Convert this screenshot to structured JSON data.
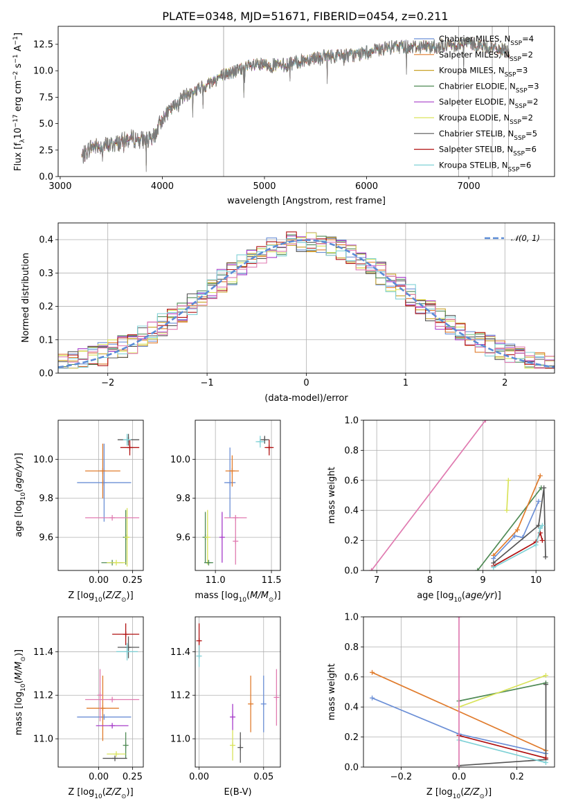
{
  "figure": {
    "title": "PLATE=0348, MJD=51671, FIBERID=0454, z=0.211"
  },
  "colors": {
    "chabrier_miles": "#6b8fd6",
    "salpeter_miles": "#e07b2c",
    "kroupa_miles": "#c9a227",
    "chabrier_elodie": "#4f8a55",
    "salpeter_elodie": "#a63bc9",
    "kroupa_elodie": "#d9e35a",
    "chabrier_stelib": "#555555",
    "salpeter_stelib": "#b01010",
    "kroupa_stelib": "#7fd1d6",
    "pink": "#e07ab0",
    "normal": "#5b8bd6",
    "grid": "#b0b0b0"
  },
  "chart_data": [
    {
      "id": "spectrum",
      "type": "line",
      "title": "PLATE=0348, MJD=51671, FIBERID=0454, z=0.211",
      "xlabel": "wavelength [Angstrom, rest frame]",
      "ylabel_main": "Flux [f",
      "ylabel_sub": "λ",
      "ylabel_tail": "10",
      "ylabel_sup1": "−17",
      "ylabel_mid": " erg cm",
      "ylabel_sup2": "−2",
      "ylabel_mid2": " s",
      "ylabel_sup3": "−1",
      "ylabel_end": " A",
      "ylabel_sup4": "−1",
      "ylabel_close": "]",
      "xlim": [
        2980,
        7840
      ],
      "ylim": [
        0,
        14.2
      ],
      "xticks": [
        3000,
        4000,
        5000,
        6000,
        7000
      ],
      "yticks": [
        0.0,
        2.5,
        5.0,
        7.5,
        10.0,
        12.5
      ],
      "ytick_labels": [
        "0.0",
        "2.5",
        "5.0",
        "7.5",
        "10.0",
        "12.5"
      ],
      "legend_position": "right",
      "legend": [
        {
          "name": "Chabrier MILES, N",
          "sub": "SSP",
          "tail": "=4",
          "color_key": "chabrier_miles"
        },
        {
          "name": "Salpeter MILES, N",
          "sub": "SSP",
          "tail": "=2",
          "color_key": "salpeter_miles"
        },
        {
          "name": "Kroupa MILES, N",
          "sub": "SSP",
          "tail": "=3",
          "color_key": "kroupa_miles"
        },
        {
          "name": "Chabrier ELODIE, N",
          "sub": "SSP",
          "tail": "=3",
          "color_key": "chabrier_elodie"
        },
        {
          "name": "Salpeter ELODIE, N",
          "sub": "SSP",
          "tail": "=2",
          "color_key": "salpeter_elodie"
        },
        {
          "name": "Kroupa ELODIE, N",
          "sub": "SSP",
          "tail": "=2",
          "color_key": "kroupa_elodie"
        },
        {
          "name": "Chabrier STELIB, N",
          "sub": "SSP",
          "tail": "=5",
          "color_key": "chabrier_stelib"
        },
        {
          "name": "Salpeter STELIB, N",
          "sub": "SSP",
          "tail": "=6",
          "color_key": "salpeter_stelib"
        },
        {
          "name": "Kroupa STELIB, N",
          "sub": "SSP",
          "tail": "=6",
          "color_key": "kroupa_stelib"
        }
      ],
      "anchor_points": [
        [
          3210,
          1.8
        ],
        [
          3300,
          2.8
        ],
        [
          3500,
          3.0
        ],
        [
          3700,
          3.6
        ],
        [
          3900,
          3.4
        ],
        [
          4000,
          5.5
        ],
        [
          4200,
          7.5
        ],
        [
          4400,
          8.5
        ],
        [
          4600,
          9.6
        ],
        [
          4900,
          10.5
        ],
        [
          5200,
          10.5
        ],
        [
          5500,
          11.3
        ],
        [
          5900,
          11.5
        ],
        [
          6300,
          12.3
        ],
        [
          6700,
          12.3
        ],
        [
          7000,
          12.6
        ],
        [
          7400,
          11.8
        ]
      ]
    },
    {
      "id": "residuals",
      "type": "histogram",
      "xlabel": "(data-model)/error",
      "ylabel": "Normed distribution",
      "xlim": [
        -2.5,
        2.5
      ],
      "ylim": [
        0,
        0.45
      ],
      "xticks": [
        -2,
        -1,
        0,
        1,
        2
      ],
      "xtick_labels": [
        "−2",
        "−1",
        "0",
        "1",
        "2"
      ],
      "yticks": [
        0.0,
        0.1,
        0.2,
        0.3,
        0.4
      ],
      "ytick_labels": [
        "0.0",
        "0.1",
        "0.2",
        "0.3",
        "0.4"
      ],
      "bin_width": 0.1,
      "legend": {
        "label": "𝒩(0, 1)",
        "position": "upper right"
      },
      "normal_curve": {
        "mean": 0,
        "sigma": 1
      }
    },
    {
      "id": "age_vs_Z",
      "type": "scatter",
      "xlabel": "Z [log",
      "xlabel_sub": "10",
      "xlabel_tail": "(Z/Z",
      "xlabel_sub2": "⊙",
      "xlabel_end": ")]",
      "ylabel": "age  [log",
      "ylabel_sub": "10",
      "ylabel_tail": "(age/yr)]",
      "xlim": [
        -0.3,
        0.33
      ],
      "ylim": [
        9.43,
        10.2
      ],
      "xticks": [
        0.0,
        0.25
      ],
      "xtick_labels": [
        "0.00",
        "0.25"
      ],
      "yticks": [
        9.6,
        9.8,
        10.0
      ],
      "ytick_labels": [
        "9.6",
        "9.8",
        "10.0"
      ],
      "points": [
        {
          "x": 0.04,
          "y": 9.88,
          "xerr": 0.2,
          "yerr": 0.2,
          "color_key": "chabrier_miles"
        },
        {
          "x": 0.03,
          "y": 9.94,
          "xerr": 0.13,
          "yerr": 0.14,
          "color_key": "salpeter_miles"
        },
        {
          "x": 0.22,
          "y": 10.1,
          "xerr": 0.08,
          "yerr": 0.03,
          "color_key": "chabrier_stelib"
        },
        {
          "x": 0.23,
          "y": 10.06,
          "xerr": 0.07,
          "yerr": 0.04,
          "color_key": "salpeter_stelib"
        },
        {
          "x": 0.21,
          "y": 10.1,
          "xerr": 0.03,
          "yerr": 0.03,
          "color_key": "kroupa_stelib"
        },
        {
          "x": 0.2,
          "y": 9.6,
          "xerr": 0.01,
          "yerr": 0.14,
          "color_key": "chabrier_elodie"
        },
        {
          "x": 0.21,
          "y": 9.6,
          "xerr": 0.01,
          "yerr": 0.15,
          "color_key": "kroupa_elodie"
        },
        {
          "x": 0.1,
          "y": 9.47,
          "xerr": 0.08,
          "yerr": 0.0,
          "color_key": "chabrier_elodie"
        },
        {
          "x": 0.13,
          "y": 9.47,
          "xerr": 0.07,
          "yerr": 0.0,
          "color_key": "kroupa_elodie"
        },
        {
          "x": 0.1,
          "y": 9.7,
          "xerr": 0.2,
          "yerr": 0.0,
          "color_key": "pink"
        }
      ]
    },
    {
      "id": "age_vs_mass",
      "type": "scatter",
      "xlabel": "mass [log",
      "xlabel_sub": "10",
      "xlabel_tail": "(M/M",
      "xlabel_sub2": "⊙",
      "xlabel_end": ")]",
      "xlim": [
        10.82,
        11.58
      ],
      "ylim": [
        9.43,
        10.2
      ],
      "xticks": [
        11.0,
        11.5
      ],
      "xtick_labels": [
        "11.0",
        "11.5"
      ],
      "yticks": [
        9.6,
        9.8,
        10.0
      ],
      "ytick_labels": [
        "9.6",
        "9.8",
        "10.0"
      ],
      "points": [
        {
          "x": 11.13,
          "y": 9.88,
          "xerr": 0.05,
          "yerr": 0.18,
          "color_key": "chabrier_miles"
        },
        {
          "x": 11.15,
          "y": 9.94,
          "xerr": 0.06,
          "yerr": 0.08,
          "color_key": "salpeter_miles"
        },
        {
          "x": 11.44,
          "y": 10.1,
          "xerr": 0.04,
          "yerr": 0.02,
          "color_key": "chabrier_stelib"
        },
        {
          "x": 11.48,
          "y": 10.06,
          "xerr": 0.04,
          "yerr": 0.04,
          "color_key": "salpeter_stelib"
        },
        {
          "x": 11.4,
          "y": 10.09,
          "xerr": 0.04,
          "yerr": 0.03,
          "color_key": "kroupa_stelib"
        },
        {
          "x": 10.91,
          "y": 9.6,
          "xerr": 0.0,
          "yerr": 0.13,
          "color_key": "chabrier_elodie"
        },
        {
          "x": 10.93,
          "y": 9.6,
          "xerr": 0.0,
          "yerr": 0.14,
          "color_key": "kroupa_elodie"
        },
        {
          "x": 10.94,
          "y": 9.47,
          "xerr": 0.04,
          "yerr": 0.0,
          "color_key": "chabrier_elodie"
        },
        {
          "x": 11.06,
          "y": 9.6,
          "xerr": 0.0,
          "yerr": 0.13,
          "color_key": "salpeter_elodie"
        },
        {
          "x": 11.18,
          "y": 9.58,
          "xerr": 0.0,
          "yerr": 0.12,
          "color_key": "pink"
        },
        {
          "x": 11.18,
          "y": 9.7,
          "xerr": 0.1,
          "yerr": 0.0,
          "color_key": "pink"
        }
      ]
    },
    {
      "id": "massweight_vs_age",
      "type": "line",
      "xlabel": "age  [log",
      "xlabel_sub": "10",
      "xlabel_tail": "(age/yr)]",
      "ylabel": "mass weight",
      "xlim": [
        6.75,
        10.35
      ],
      "ylim": [
        0,
        1
      ],
      "xticks": [
        7,
        8,
        9,
        10
      ],
      "xtick_labels": [
        "7",
        "8",
        "9",
        "10"
      ],
      "yticks": [
        0.0,
        0.2,
        0.4,
        0.6,
        0.8,
        1.0
      ],
      "ytick_labels": [
        "0.0",
        "0.2",
        "0.4",
        "0.6",
        "0.8",
        "1.0"
      ],
      "series": [
        {
          "color_key": "pink",
          "x": [
            6.9,
            9.05
          ],
          "y": [
            0.0,
            1.0
          ]
        },
        {
          "color_key": "chabrier_elodie",
          "x": [
            8.9,
            10.1
          ],
          "y": [
            0.0,
            0.55
          ]
        },
        {
          "color_key": "salpeter_miles",
          "x": [
            9.2,
            9.65,
            10.08
          ],
          "y": [
            0.1,
            0.27,
            0.63
          ]
        },
        {
          "color_key": "chabrier_miles",
          "x": [
            9.2,
            9.6,
            9.75,
            10.05
          ],
          "y": [
            0.08,
            0.23,
            0.22,
            0.46
          ]
        },
        {
          "color_key": "chabrier_stelib",
          "x": [
            9.2,
            10.05,
            10.15,
            10.18
          ],
          "y": [
            0.05,
            0.3,
            0.55,
            0.09
          ]
        },
        {
          "color_key": "salpeter_stelib",
          "x": [
            9.2,
            10.0,
            10.08,
            10.12
          ],
          "y": [
            0.03,
            0.19,
            0.25,
            0.2
          ]
        },
        {
          "color_key": "kroupa_stelib",
          "x": [
            9.2,
            10.0,
            10.08,
            10.12
          ],
          "y": [
            0.02,
            0.17,
            0.28,
            0.3
          ]
        },
        {
          "color_key": "kroupa_elodie",
          "x": [
            9.45,
            9.48
          ],
          "y": [
            0.4,
            0.6
          ]
        }
      ]
    },
    {
      "id": "mass_vs_Z",
      "type": "scatter",
      "xlabel": "Z [log",
      "xlabel_sub": "10",
      "xlabel_tail": "(Z/Z",
      "xlabel_sub2": "⊙",
      "xlabel_end": ")]",
      "ylabel": "mass [log",
      "ylabel_sub": "10",
      "ylabel_tail": "(M/M",
      "ylabel_sub2": "⊙",
      "ylabel_end": ")]",
      "xlim": [
        -0.3,
        0.33
      ],
      "ylim": [
        10.87,
        11.56
      ],
      "xticks": [
        0.0,
        0.25
      ],
      "xtick_labels": [
        "0.00",
        "0.25"
      ],
      "yticks": [
        11.0,
        11.2,
        11.4
      ],
      "ytick_labels": [
        "11.0",
        "11.2",
        "11.4"
      ],
      "points": [
        {
          "x": 0.04,
          "y": 11.1,
          "xerr": 0.2,
          "yerr": 0.0,
          "color_key": "chabrier_miles"
        },
        {
          "x": 0.03,
          "y": 11.14,
          "xerr": 0.12,
          "yerr": 0.15,
          "color_key": "salpeter_miles"
        },
        {
          "x": 0.22,
          "y": 11.42,
          "xerr": 0.08,
          "yerr": 0.05,
          "color_key": "chabrier_stelib"
        },
        {
          "x": 0.2,
          "y": 11.48,
          "xerr": 0.1,
          "yerr": 0.05,
          "color_key": "salpeter_stelib"
        },
        {
          "x": 0.21,
          "y": 11.4,
          "xerr": 0.08,
          "yerr": 0.04,
          "color_key": "kroupa_stelib"
        },
        {
          "x": 0.2,
          "y": 10.97,
          "xerr": 0.0,
          "yerr": 0.06,
          "color_key": "chabrier_elodie"
        },
        {
          "x": 0.1,
          "y": 11.06,
          "xerr": 0.12,
          "yerr": 0.0,
          "color_key": "salpeter_elodie"
        },
        {
          "x": 0.13,
          "y": 10.93,
          "xerr": 0.07,
          "yerr": 0.0,
          "color_key": "kroupa_elodie"
        },
        {
          "x": 0.12,
          "y": 10.91,
          "xerr": 0.09,
          "yerr": 0.0,
          "color_key": "chabrier_stelib"
        },
        {
          "x": 0.1,
          "y": 11.18,
          "xerr": 0.2,
          "yerr": 0.0,
          "color_key": "pink"
        },
        {
          "x": 0.01,
          "y": 11.2,
          "xerr": 0.0,
          "yerr": 0.12,
          "color_key": "pink"
        }
      ]
    },
    {
      "id": "mass_vs_ebv",
      "type": "scatter",
      "xlabel": "E(B-V)",
      "xlim": [
        -0.003,
        0.063
      ],
      "ylim": [
        10.87,
        11.56
      ],
      "xticks": [
        0.0,
        0.05
      ],
      "xtick_labels": [
        "0.00",
        "0.05"
      ],
      "yticks": [
        11.0,
        11.2,
        11.4
      ],
      "ytick_labels": [
        "11.0",
        "11.2",
        "11.4"
      ],
      "points": [
        {
          "x": 0.0,
          "y": 11.45,
          "xerr": 0.0,
          "yerr": 0.08,
          "color_key": "salpeter_stelib"
        },
        {
          "x": 0.0,
          "y": 11.38,
          "xerr": 0.0,
          "yerr": 0.05,
          "color_key": "kroupa_stelib"
        },
        {
          "x": 0.026,
          "y": 11.1,
          "xerr": 0.0,
          "yerr": 0.06,
          "color_key": "salpeter_elodie"
        },
        {
          "x": 0.026,
          "y": 10.97,
          "xerr": 0.0,
          "yerr": 0.07,
          "color_key": "kroupa_elodie"
        },
        {
          "x": 0.032,
          "y": 10.96,
          "xerr": 0.0,
          "yerr": 0.07,
          "color_key": "chabrier_stelib"
        },
        {
          "x": 0.04,
          "y": 11.16,
          "xerr": 0.0,
          "yerr": 0.13,
          "color_key": "salpeter_miles"
        },
        {
          "x": 0.05,
          "y": 11.16,
          "xerr": 0.0,
          "yerr": 0.13,
          "color_key": "chabrier_miles"
        },
        {
          "x": 0.06,
          "y": 11.19,
          "xerr": 0.0,
          "yerr": 0.13,
          "color_key": "pink"
        }
      ]
    },
    {
      "id": "massweight_vs_Z",
      "type": "line",
      "xlabel": "Z [log",
      "xlabel_sub": "10",
      "xlabel_tail": "(Z/Z",
      "xlabel_sub2": "⊙",
      "xlabel_end": ")]",
      "ylabel": "mass weight",
      "xlim": [
        -0.33,
        0.33
      ],
      "ylim": [
        0,
        1
      ],
      "xticks": [
        -0.2,
        0.0,
        0.2
      ],
      "xtick_labels": [
        "−0.2",
        "0.0",
        "0.2"
      ],
      "yticks": [
        0.0,
        0.2,
        0.4,
        0.6,
        0.8,
        1.0
      ],
      "ytick_labels": [
        "0.0",
        "0.2",
        "0.4",
        "0.6",
        "0.8",
        "1.0"
      ],
      "series": [
        {
          "color_key": "salpeter_miles",
          "x": [
            -0.3,
            0.3
          ],
          "y": [
            0.63,
            0.11
          ]
        },
        {
          "color_key": "chabrier_miles",
          "x": [
            -0.3,
            0.0,
            0.3
          ],
          "y": [
            0.46,
            0.22,
            0.09
          ]
        },
        {
          "color_key": "chabrier_elodie",
          "x": [
            0.0,
            0.3
          ],
          "y": [
            0.44,
            0.56
          ]
        },
        {
          "color_key": "kroupa_elodie",
          "x": [
            0.0,
            0.3
          ],
          "y": [
            0.4,
            0.61
          ]
        },
        {
          "color_key": "chabrier_stelib",
          "x": [
            0.0,
            0.3,
            0.3
          ],
          "y": [
            0.01,
            0.05,
            0.55
          ]
        },
        {
          "color_key": "salpeter_stelib",
          "x": [
            0.0,
            0.3
          ],
          "y": [
            0.21,
            0.06
          ]
        },
        {
          "color_key": "kroupa_stelib",
          "x": [
            0.0,
            0.3
          ],
          "y": [
            0.18,
            0.03
          ]
        },
        {
          "color_key": "pink",
          "x": [
            0.0,
            0.0
          ],
          "y": [
            0.0,
            1.0
          ]
        }
      ]
    }
  ]
}
